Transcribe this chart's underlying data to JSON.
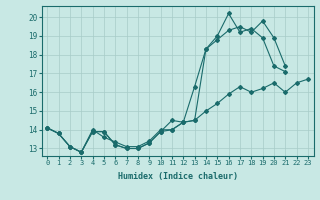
{
  "xlabel": "Humidex (Indice chaleur)",
  "xlim": [
    -0.5,
    23.5
  ],
  "ylim": [
    12.6,
    20.6
  ],
  "yticks": [
    13,
    14,
    15,
    16,
    17,
    18,
    19,
    20
  ],
  "xticks": [
    0,
    1,
    2,
    3,
    4,
    5,
    6,
    7,
    8,
    9,
    10,
    11,
    12,
    13,
    14,
    15,
    16,
    17,
    18,
    19,
    20,
    21,
    22,
    23
  ],
  "bg_color": "#c8e8e4",
  "line_color": "#1a6b6b",
  "grid_color": "#a8ccc8",
  "series1_x": [
    0,
    1,
    2,
    3,
    4,
    5,
    6,
    7,
    8,
    9,
    10,
    11,
    12,
    13,
    14,
    15,
    16,
    17,
    18,
    19,
    20,
    21
  ],
  "series1_y": [
    14.1,
    13.8,
    13.1,
    12.8,
    13.9,
    13.9,
    13.2,
    13.0,
    13.0,
    13.3,
    13.9,
    14.0,
    14.4,
    16.3,
    18.3,
    19.0,
    20.2,
    19.2,
    19.4,
    18.9,
    17.4,
    17.1
  ],
  "series2_x": [
    0,
    1,
    2,
    3,
    4,
    5,
    6,
    7,
    8,
    9,
    10,
    11,
    12,
    13,
    14,
    15,
    16,
    17,
    18,
    19,
    20,
    21
  ],
  "series2_y": [
    14.1,
    13.8,
    13.1,
    12.8,
    13.9,
    13.9,
    13.2,
    13.0,
    13.0,
    13.3,
    13.9,
    14.5,
    14.4,
    14.5,
    18.3,
    18.8,
    19.3,
    19.5,
    19.2,
    19.8,
    18.9,
    17.4
  ],
  "series3_x": [
    0,
    1,
    2,
    3,
    4,
    5,
    6,
    7,
    8,
    9,
    10,
    11,
    12,
    13,
    14,
    15,
    16,
    17,
    18,
    19,
    20,
    21,
    22,
    23
  ],
  "series3_y": [
    14.1,
    13.8,
    13.1,
    12.8,
    14.0,
    13.6,
    13.35,
    13.1,
    13.1,
    13.4,
    14.0,
    14.0,
    14.4,
    14.5,
    15.0,
    15.4,
    15.9,
    16.3,
    16.0,
    16.2,
    16.5,
    16.0,
    16.5,
    16.7
  ]
}
